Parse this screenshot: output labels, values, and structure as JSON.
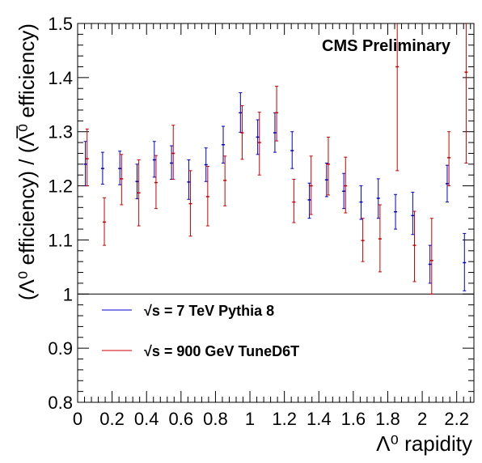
{
  "chart_data": {
    "type": "scatter",
    "annotation": "CMS Preliminary",
    "xlabel": "Λ⁰ rapidity",
    "ylabel": "(Λ⁰ efficiency) / (Λ̅⁰ efficiency)",
    "xlim": [
      0,
      2.3
    ],
    "ylim": [
      0.8,
      1.5
    ],
    "reference_line": 1.0,
    "xticks": [
      "0",
      "0.2",
      "0.4",
      "0.6",
      "0.8",
      "1",
      "1.2",
      "1.4",
      "1.6",
      "1.8",
      "2",
      "2.2"
    ],
    "yticks": [
      "0.8",
      "0.9",
      "1",
      "1.1",
      "1.2",
      "1.3",
      "1.4",
      "1.5"
    ],
    "legend_position": "lower-left",
    "series": [
      {
        "name": "√s = 7 TeV Pythia 8",
        "color": "#0000cc",
        "x": [
          0.045,
          0.145,
          0.245,
          0.345,
          0.445,
          0.545,
          0.645,
          0.745,
          0.845,
          0.945,
          1.045,
          1.145,
          1.245,
          1.345,
          1.445,
          1.545,
          1.645,
          1.745,
          1.845,
          1.945,
          2.045,
          2.145,
          2.245
        ],
        "y": [
          1.24,
          1.232,
          1.232,
          1.208,
          1.248,
          1.242,
          1.207,
          1.239,
          1.276,
          1.335,
          1.29,
          1.298,
          1.265,
          1.174,
          1.211,
          1.19,
          1.17,
          1.177,
          1.152,
          1.145,
          1.055,
          1.204,
          1.058
        ],
        "y_low": [
          1.2,
          1.203,
          1.202,
          1.176,
          1.216,
          1.212,
          1.175,
          1.208,
          1.242,
          1.299,
          1.258,
          1.262,
          1.232,
          1.14,
          1.18,
          1.158,
          1.138,
          1.14,
          1.12,
          1.11,
          1.02,
          1.17,
          1.006
        ],
        "y_high": [
          1.282,
          1.262,
          1.264,
          1.24,
          1.282,
          1.274,
          1.248,
          1.27,
          1.31,
          1.372,
          1.322,
          1.335,
          1.3,
          1.205,
          1.242,
          1.223,
          1.2,
          1.213,
          1.184,
          1.188,
          1.09,
          1.238,
          1.112
        ]
      },
      {
        "name": "√s = 900 GeV TuneD6T",
        "color": "#cc0000",
        "x": [
          0.055,
          0.155,
          0.255,
          0.355,
          0.455,
          0.555,
          0.655,
          0.755,
          0.855,
          0.955,
          1.055,
          1.155,
          1.255,
          1.355,
          1.455,
          1.555,
          1.655,
          1.755,
          1.855,
          1.955,
          2.055,
          2.155,
          2.255
        ],
        "y": [
          1.25,
          1.133,
          1.213,
          1.187,
          1.206,
          1.26,
          1.167,
          1.18,
          1.21,
          1.298,
          1.28,
          1.335,
          1.17,
          1.2,
          1.24,
          1.2,
          1.099,
          1.102,
          1.42,
          1.09,
          1.062,
          1.252,
          1.41
        ],
        "y_low": [
          1.2,
          1.09,
          1.165,
          1.126,
          1.158,
          1.212,
          1.107,
          1.126,
          1.163,
          1.249,
          1.22,
          1.283,
          1.132,
          1.147,
          1.183,
          1.15,
          1.06,
          1.041,
          1.228,
          1.023,
          1.0,
          1.2,
          1.242
        ],
        "y_high": [
          1.305,
          1.178,
          1.258,
          1.248,
          1.256,
          1.312,
          1.228,
          1.236,
          1.255,
          1.348,
          1.336,
          1.384,
          1.212,
          1.255,
          1.29,
          1.253,
          1.14,
          1.165,
          1.5,
          1.153,
          1.14,
          1.3,
          1.5
        ]
      }
    ]
  }
}
